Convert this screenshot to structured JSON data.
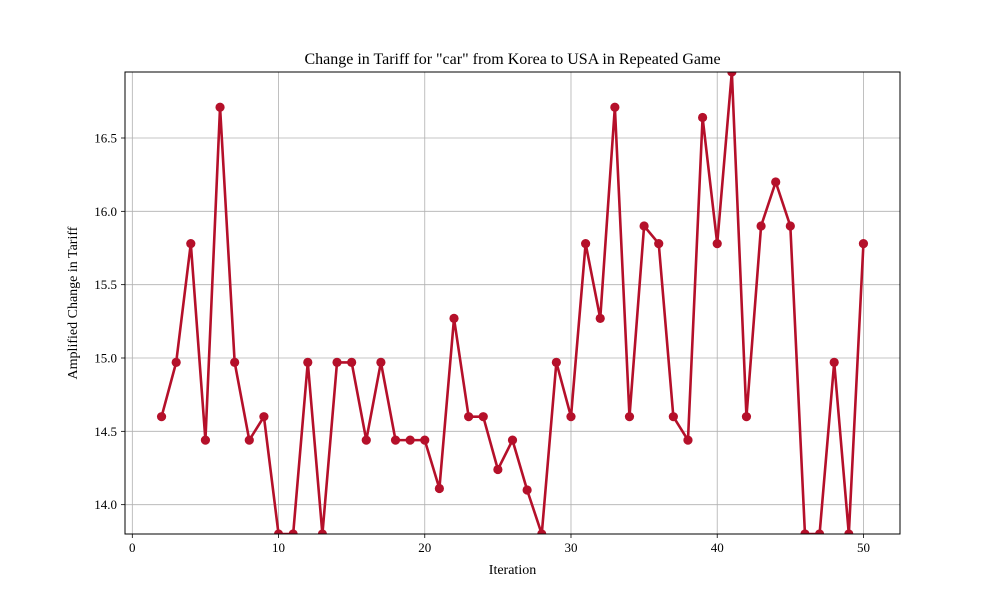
{
  "chart_data": {
    "type": "line",
    "title": "Change in Tariff for \"car\" from Korea to USA in Repeated Game",
    "xlabel": "Iteration",
    "ylabel": "Amplified Change in Tariff",
    "xlim": [
      -0.5,
      52.5
    ],
    "ylim": [
      13.8,
      16.95
    ],
    "xticks": [
      0,
      10,
      20,
      30,
      40,
      50
    ],
    "yticks": [
      14.0,
      14.5,
      15.0,
      15.5,
      16.0,
      16.5
    ],
    "xtick_labels": [
      "0",
      "10",
      "20",
      "30",
      "40",
      "50"
    ],
    "ytick_labels": [
      "14.0",
      "14.5",
      "15.0",
      "15.5",
      "16.0",
      "16.5"
    ],
    "grid": true,
    "series": [
      {
        "color": "#b5102a",
        "marker": "circle",
        "x": [
          2,
          3,
          4,
          5,
          6,
          7,
          8,
          9,
          10,
          11,
          12,
          13,
          14,
          15,
          16,
          17,
          18,
          19,
          20,
          21,
          22,
          23,
          24,
          25,
          26,
          27,
          28,
          29,
          30,
          31,
          32,
          33,
          34,
          35,
          36,
          37,
          38,
          39,
          40,
          41,
          42,
          43,
          44,
          45,
          46,
          47,
          48,
          49,
          50
        ],
        "y": [
          14.6,
          14.97,
          15.78,
          14.44,
          16.71,
          14.97,
          14.44,
          14.6,
          13.8,
          13.8,
          14.97,
          13.8,
          14.97,
          14.97,
          14.44,
          14.97,
          14.44,
          14.44,
          14.44,
          14.11,
          15.27,
          14.6,
          14.6,
          14.24,
          14.44,
          14.1,
          13.8,
          14.97,
          14.6,
          15.78,
          15.27,
          16.71,
          14.6,
          15.9,
          15.78,
          14.6,
          14.44,
          16.64,
          15.78,
          16.95,
          14.6,
          15.9,
          16.2,
          15.9,
          13.8,
          13.8,
          14.97,
          13.8,
          15.78
        ]
      }
    ]
  }
}
